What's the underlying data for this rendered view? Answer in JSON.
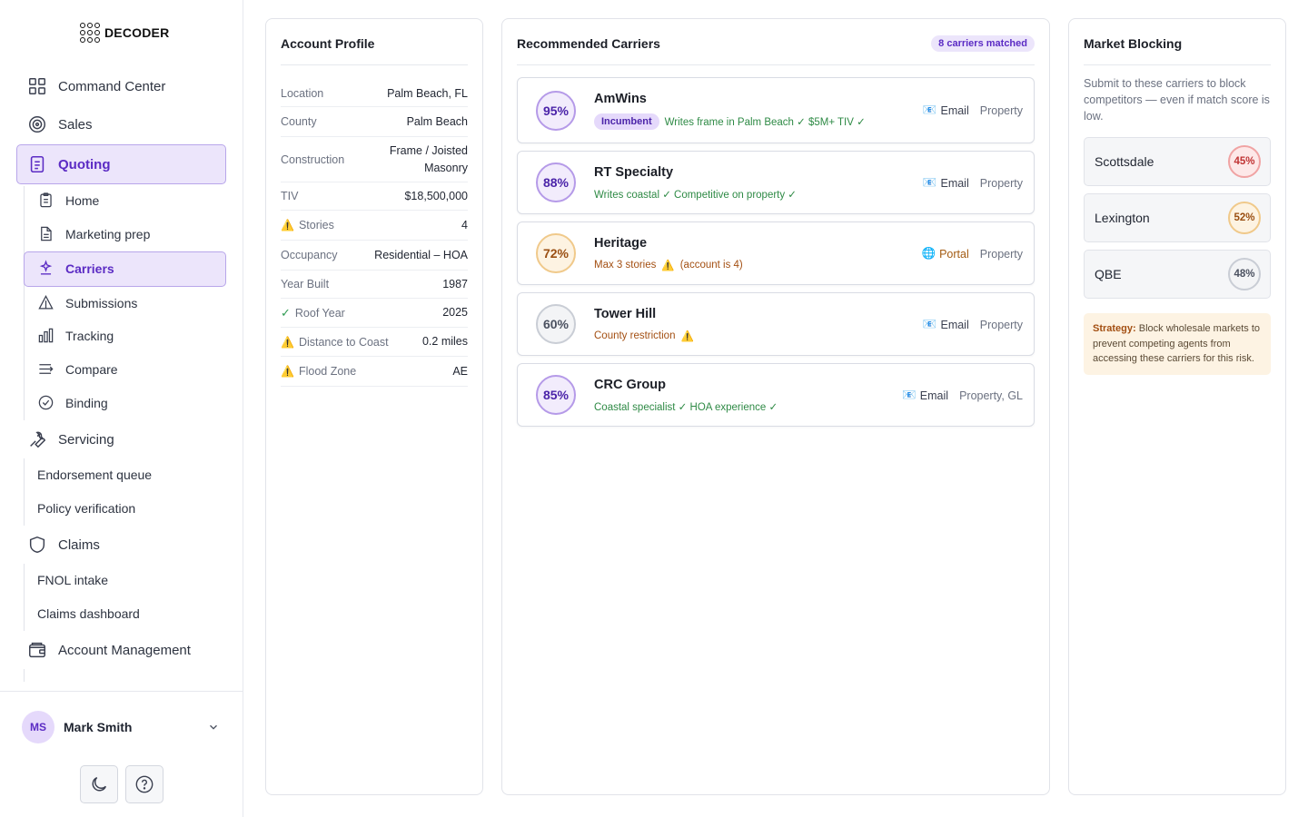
{
  "brand": {
    "name": "DECODER"
  },
  "sidebar": {
    "command_center": "Command Center",
    "sales": "Sales",
    "quoting": "Quoting",
    "quoting_items": {
      "home": "Home",
      "marketing_prep": "Marketing prep",
      "carriers": "Carriers",
      "submissions": "Submissions",
      "tracking": "Tracking",
      "compare": "Compare",
      "binding": "Binding"
    },
    "servicing": "Servicing",
    "servicing_items": {
      "endorsement_queue": "Endorsement queue",
      "policy_verification": "Policy verification"
    },
    "claims": "Claims",
    "claims_items": {
      "fnol_intake": "FNOL intake",
      "claims_dashboard": "Claims dashboard"
    },
    "account_management": "Account Management",
    "user": {
      "initials": "MS",
      "name": "Mark Smith"
    }
  },
  "profile": {
    "title": "Account Profile",
    "rows": [
      {
        "label": "Location",
        "value": "Palm Beach, FL"
      },
      {
        "label": "County",
        "value": "Palm Beach"
      },
      {
        "label": "Construction",
        "value": "Frame / Joisted Masonry"
      },
      {
        "label": "TIV",
        "value": "$18,500,000"
      },
      {
        "label": "Stories",
        "value": "4",
        "flag": "⚠️"
      },
      {
        "label": "Occupancy",
        "value": "Residential – HOA"
      },
      {
        "label": "Year Built",
        "value": "1987"
      },
      {
        "label": "Roof Year",
        "value": "2025",
        "flag": "✓"
      },
      {
        "label": "Distance to Coast",
        "value": "0.2 miles",
        "flag": "⚠️"
      },
      {
        "label": "Flood Zone",
        "value": "AE",
        "flag": "⚠️"
      }
    ]
  },
  "recommended": {
    "title": "Recommended Carriers",
    "matched_badge": "8 carriers matched",
    "carriers": [
      {
        "score": "95%",
        "name": "AmWins",
        "badge": "Incumbent",
        "note": "Writes frame in Palm Beach ✓ $5M+ TIV ✓",
        "method_icon": "📧",
        "method": "Email",
        "lines": "Property"
      },
      {
        "score": "88%",
        "name": "RT Specialty",
        "note": "Writes coastal ✓ Competitive on property ✓",
        "method_icon": "📧",
        "method": "Email",
        "lines": "Property"
      },
      {
        "score": "72%",
        "name": "Heritage",
        "note_pre": "Max 3 stories",
        "note_flag": "⚠️",
        "note_post": "(account is 4)",
        "method_icon": "🌐",
        "method": "Portal",
        "lines": "Property"
      },
      {
        "score": "60%",
        "name": "Tower Hill",
        "note_pre": "County restriction",
        "note_flag": "⚠️",
        "method_icon": "📧",
        "method": "Email",
        "lines": "Property"
      },
      {
        "score": "85%",
        "name": "CRC Group",
        "note": "Coastal specialist ✓ HOA experience ✓",
        "method_icon": "📧",
        "method": "Email",
        "lines": "Property, GL"
      }
    ]
  },
  "blocking": {
    "title": "Market Blocking",
    "description": "Submit to these carriers to block competitors — even if match score is low.",
    "items": [
      {
        "name": "Scottsdale",
        "score": "45%"
      },
      {
        "name": "Lexington",
        "score": "52%"
      },
      {
        "name": "QBE",
        "score": "48%"
      }
    ],
    "strategy_label": "Strategy:",
    "strategy_text": "Block wholesale markets to prevent competing agents from accessing these carriers for this risk."
  },
  "colors": {
    "accent": "#5b2bc4",
    "accent_bg": "#ece5fb",
    "success": "#2e8a45",
    "warning": "#a34f12"
  }
}
